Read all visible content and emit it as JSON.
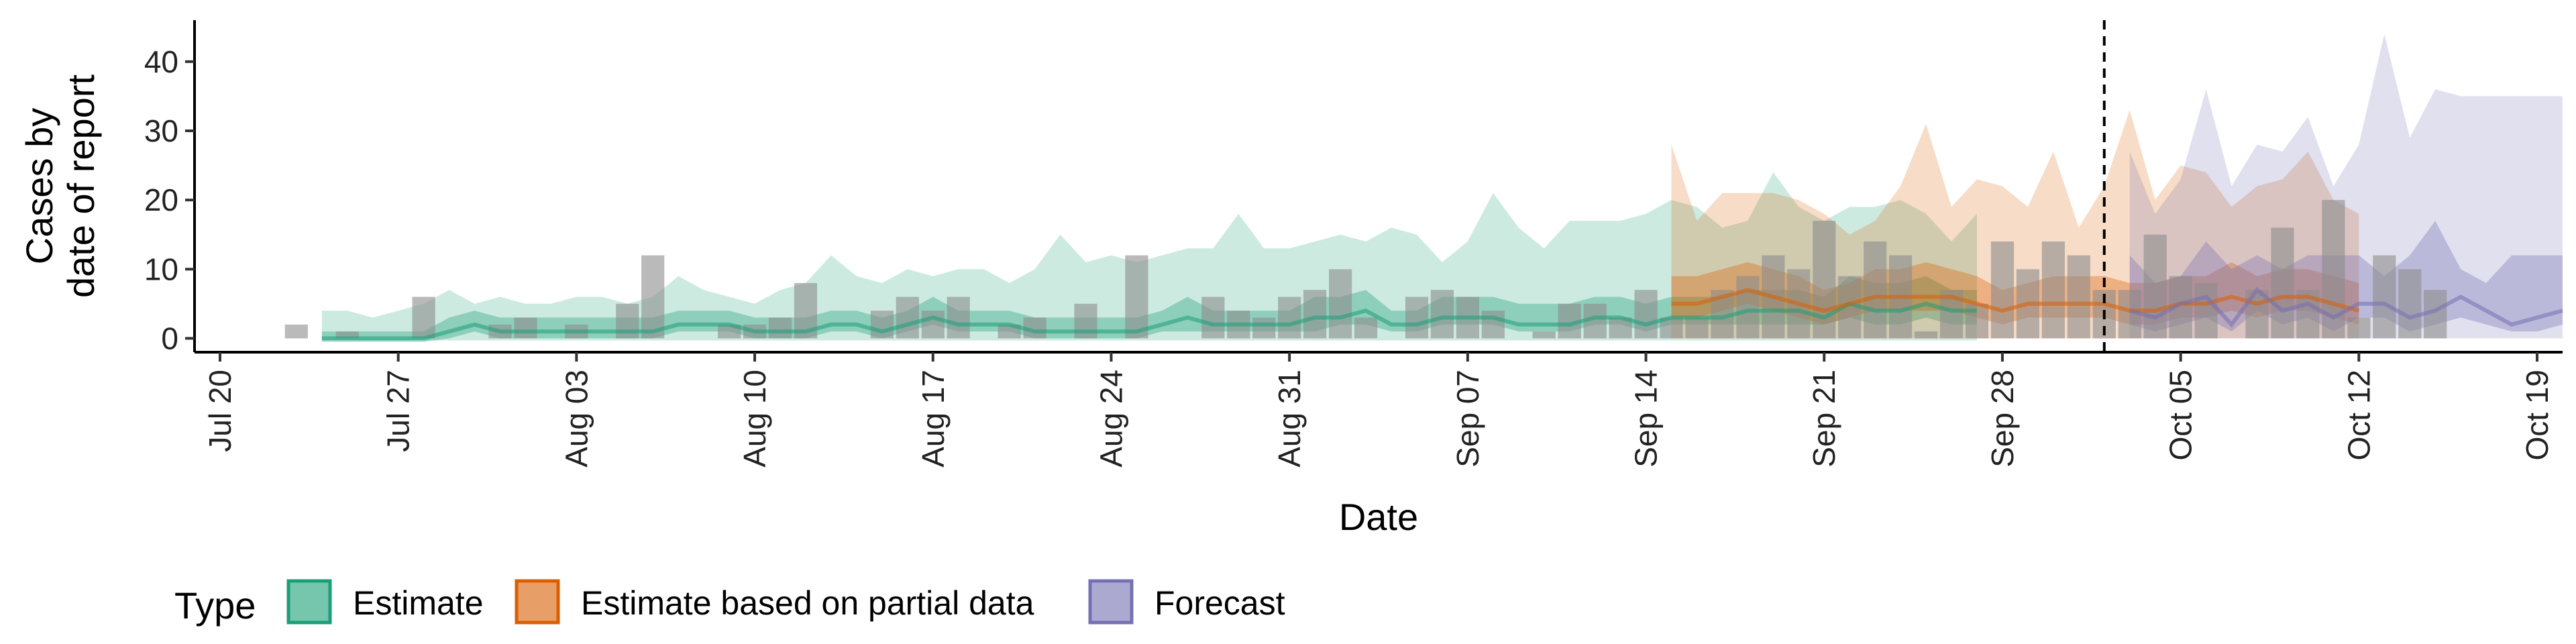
{
  "chart_data": {
    "type": "area",
    "xlabel": "Date",
    "ylabel_line1": "Cases by",
    "ylabel_line2": "date of report",
    "xlim": [
      "2020-07-19",
      "2020-10-20"
    ],
    "ylim": [
      -2,
      46
    ],
    "x_ticks": [
      {
        "date": "2020-07-20",
        "label": "Jul 20"
      },
      {
        "date": "2020-07-27",
        "label": "Jul 27"
      },
      {
        "date": "2020-08-03",
        "label": "Aug 03"
      },
      {
        "date": "2020-08-10",
        "label": "Aug 10"
      },
      {
        "date": "2020-08-17",
        "label": "Aug 17"
      },
      {
        "date": "2020-08-24",
        "label": "Aug 24"
      },
      {
        "date": "2020-08-31",
        "label": "Aug 31"
      },
      {
        "date": "2020-09-07",
        "label": "Sep 07"
      },
      {
        "date": "2020-09-14",
        "label": "Sep 14"
      },
      {
        "date": "2020-09-21",
        "label": "Sep 21"
      },
      {
        "date": "2020-09-28",
        "label": "Sep 28"
      },
      {
        "date": "2020-10-05",
        "label": "Oct 05"
      },
      {
        "date": "2020-10-12",
        "label": "Oct 12"
      },
      {
        "date": "2020-10-19",
        "label": "Oct 19"
      }
    ],
    "y_ticks": [
      {
        "value": 0,
        "label": "0"
      },
      {
        "value": 10,
        "label": "10"
      },
      {
        "value": 20,
        "label": "20"
      },
      {
        "value": 30,
        "label": "30"
      },
      {
        "value": 40,
        "label": "40"
      }
    ],
    "forecast_start_date": "2020-10-02",
    "reported_cases": {
      "start_date": "2020-07-23",
      "values": [
        2,
        0,
        1,
        0,
        0,
        6,
        0,
        0,
        2,
        3,
        0,
        2,
        0,
        5,
        12,
        0,
        0,
        2,
        2,
        3,
        8,
        0,
        0,
        4,
        6,
        4,
        6,
        0,
        2,
        3,
        0,
        5,
        0,
        12,
        0,
        0,
        6,
        4,
        3,
        6,
        7,
        10,
        3,
        0,
        6,
        7,
        6,
        4,
        0,
        1,
        5,
        5,
        3,
        7,
        3,
        3,
        7,
        9,
        12,
        10,
        17,
        9,
        14,
        12,
        1,
        7,
        5,
        14,
        10,
        14,
        12,
        7,
        7,
        15,
        9,
        8,
        0,
        7,
        16,
        7,
        20,
        3,
        12,
        10,
        7
      ]
    },
    "series": [
      {
        "name": "Estimate",
        "color": "#1B9E77",
        "start_date": "2020-07-24",
        "median": [
          0,
          0,
          0,
          0,
          0,
          1,
          2,
          1,
          1,
          1,
          1,
          1,
          1,
          1,
          2,
          2,
          2,
          1,
          1,
          1,
          2,
          2,
          1,
          2,
          3,
          2,
          2,
          2,
          1,
          1,
          1,
          1,
          1,
          2,
          3,
          2,
          2,
          2,
          2,
          3,
          3,
          4,
          2,
          2,
          3,
          3,
          3,
          2,
          2,
          2,
          3,
          3,
          2,
          3,
          3,
          3,
          4,
          4,
          4,
          3,
          5,
          4,
          4,
          5,
          4,
          4
        ],
        "q25": [
          -0.5,
          -0.5,
          -0.5,
          -0.5,
          -0.5,
          0,
          1,
          0,
          0,
          0,
          0,
          0,
          0,
          0,
          1,
          1,
          1,
          0,
          0,
          0,
          1,
          1,
          0,
          1,
          2,
          1,
          1,
          1,
          0,
          0,
          0,
          0,
          0,
          1,
          1,
          1,
          1,
          1,
          1,
          1,
          2,
          2,
          1,
          1,
          2,
          2,
          2,
          1,
          1,
          1,
          2,
          2,
          1,
          2,
          2,
          2,
          2,
          2,
          2,
          2,
          3,
          2,
          2,
          3,
          2,
          2
        ],
        "q75": [
          1,
          1,
          1,
          1,
          1,
          3,
          4,
          3,
          3,
          3,
          3,
          3,
          3,
          3,
          4,
          4,
          4,
          3,
          3,
          3,
          4,
          4,
          3,
          4,
          6,
          4,
          4,
          4,
          3,
          3,
          3,
          3,
          3,
          4,
          6,
          4,
          4,
          4,
          4,
          6,
          6,
          7,
          4,
          4,
          6,
          6,
          6,
          5,
          5,
          5,
          6,
          6,
          5,
          6,
          6,
          6,
          7,
          7,
          7,
          6,
          9,
          8,
          8,
          9,
          7,
          7
        ],
        "lower": [
          -0.3,
          -0.3,
          -0.3,
          -0.3,
          -0.3,
          -0.3,
          -0.3,
          -0.3,
          -0.3,
          -0.3,
          -0.3,
          -0.3,
          -0.3,
          -0.3,
          -0.3,
          -0.3,
          -0.3,
          -0.3,
          -0.3,
          -0.3,
          -0.3,
          -0.3,
          -0.3,
          -0.3,
          -0.3,
          -0.3,
          -0.3,
          -0.3,
          -0.3,
          -0.3,
          -0.3,
          -0.3,
          -0.3,
          -0.3,
          -0.3,
          -0.3,
          -0.3,
          -0.3,
          -0.3,
          -0.3,
          -0.3,
          -0.3,
          -0.3,
          -0.3,
          -0.3,
          -0.3,
          -0.3,
          -0.3,
          -0.3,
          -0.3,
          -0.3,
          -0.3,
          -0.3,
          -0.3,
          -0.3,
          -0.3,
          -0.3,
          -0.3,
          -0.3,
          -0.3,
          -0.3,
          -0.3,
          -0.3,
          -0.3,
          -0.3,
          -0.3
        ],
        "upper": [
          4,
          4,
          3,
          4,
          5,
          7,
          5,
          6,
          5,
          5,
          6,
          6,
          5,
          6,
          9,
          7,
          6,
          5,
          7,
          8,
          12,
          9,
          8,
          10,
          9,
          10,
          10,
          8,
          10,
          15,
          11,
          12,
          11,
          12,
          13,
          13,
          18,
          13,
          13,
          14,
          15,
          14,
          16,
          15,
          11,
          14,
          21,
          16,
          13,
          17,
          17,
          17,
          18,
          20,
          19,
          16,
          17,
          24,
          19,
          17,
          19,
          19,
          20,
          18,
          14,
          18
        ]
      },
      {
        "name": "Estimate based on partial data",
        "color": "#D95F02",
        "start_date": "2020-09-15",
        "median": [
          5,
          5,
          6,
          7,
          6,
          5,
          4,
          5,
          6,
          6,
          6,
          6,
          5,
          4,
          5,
          5,
          5,
          5,
          4,
          4,
          5,
          5,
          6,
          5,
          6,
          6,
          5,
          4
        ],
        "q25": [
          3,
          3,
          4,
          5,
          4,
          3,
          2,
          3,
          4,
          4,
          4,
          4,
          3,
          2,
          3,
          3,
          3,
          3,
          2,
          2,
          3,
          3,
          4,
          3,
          4,
          4,
          3,
          2
        ],
        "q75": [
          9,
          9,
          10,
          11,
          10,
          9,
          7,
          8,
          10,
          10,
          11,
          10,
          9,
          7,
          8,
          9,
          9,
          9,
          8,
          8,
          9,
          9,
          11,
          9,
          10,
          10,
          9,
          8
        ],
        "lower": [
          0,
          0,
          0,
          0,
          0,
          0,
          0,
          0,
          0,
          0,
          0,
          0,
          0,
          0,
          0,
          0,
          0,
          0,
          0,
          0,
          0,
          0,
          0,
          0,
          0,
          0,
          0,
          0
        ],
        "upper": [
          28,
          17,
          21,
          21,
          21,
          20,
          18,
          15,
          17,
          22,
          31,
          19,
          23,
          22,
          19,
          27,
          16,
          22,
          33,
          20,
          25,
          24,
          19,
          22,
          23,
          27,
          20,
          18
        ]
      },
      {
        "name": "Forecast",
        "color": "#7570B3",
        "start_date": "2020-10-03",
        "median": [
          4,
          3,
          5,
          6,
          2,
          7,
          4,
          5,
          3,
          5,
          5,
          3,
          4,
          6,
          4,
          2,
          3,
          4
        ],
        "q25": [
          2,
          1,
          2,
          3,
          1,
          4,
          2,
          3,
          1,
          3,
          3,
          1,
          2,
          3,
          2,
          1,
          1,
          2
        ],
        "q75": [
          12,
          8,
          9,
          14,
          10,
          12,
          10,
          12,
          12,
          12,
          9,
          12,
          17,
          10,
          8,
          12,
          12,
          12
        ],
        "lower": [
          0,
          0,
          0,
          0,
          0,
          0,
          0,
          0,
          0,
          0,
          0,
          0,
          0,
          0,
          0,
          0,
          0,
          0
        ],
        "upper": [
          27,
          18,
          23,
          36,
          22,
          28,
          27,
          32,
          22,
          28,
          44,
          29,
          36,
          35,
          35,
          35,
          35,
          35
        ]
      }
    ],
    "legend": {
      "title": "Type",
      "position": "bottom",
      "items": [
        {
          "label": "Estimate",
          "color": "#1B9E77"
        },
        {
          "label": "Estimate based on partial data",
          "color": "#D95F02"
        },
        {
          "label": "Forecast",
          "color": "#7570B3"
        }
      ]
    },
    "grid": false
  }
}
